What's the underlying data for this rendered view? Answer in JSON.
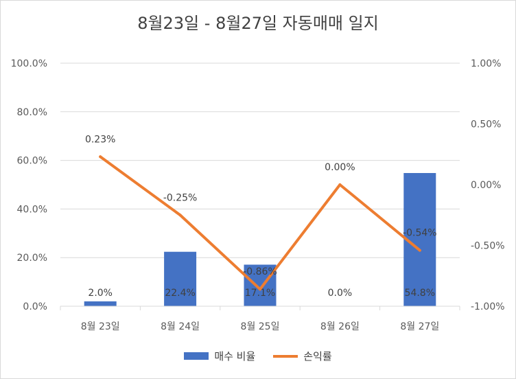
{
  "chart_data": {
    "type": "bar+line",
    "title": "8월23일 - 8월27일 자동매매 일지",
    "categories": [
      "8월 23일",
      "8월 24일",
      "8월 25일",
      "8월 26일",
      "8월 27일"
    ],
    "series": [
      {
        "name": "매수 비율",
        "type": "bar",
        "axis": "left",
        "color": "#4472C4",
        "values": [
          2.0,
          22.4,
          17.1,
          0.0,
          54.8
        ],
        "labels": [
          "2.0%",
          "22.4%",
          "17.1%",
          "0.0%",
          "54.8%"
        ]
      },
      {
        "name": "손익률",
        "type": "line",
        "axis": "right",
        "color": "#ED7D31",
        "values": [
          0.23,
          -0.25,
          -0.86,
          0.0,
          -0.54
        ],
        "labels": [
          "0.23%",
          "-0.25%",
          "-0.86%",
          "0.00%",
          "-0.54%"
        ]
      }
    ],
    "left_axis": {
      "ylim": [
        0,
        100
      ],
      "ticks": [
        0,
        20,
        40,
        60,
        80,
        100
      ],
      "tick_labels": [
        "0.0%",
        "20.0%",
        "40.0%",
        "60.0%",
        "80.0%",
        "100.0%"
      ]
    },
    "right_axis": {
      "ylim": [
        -1.0,
        1.0
      ],
      "ticks": [
        -1.0,
        -0.5,
        0.0,
        0.5,
        1.0
      ],
      "tick_labels": [
        "-1.00%",
        "-0.50%",
        "0.00%",
        "0.50%",
        "1.00%"
      ]
    },
    "grid": true,
    "legend_position": "bottom"
  }
}
